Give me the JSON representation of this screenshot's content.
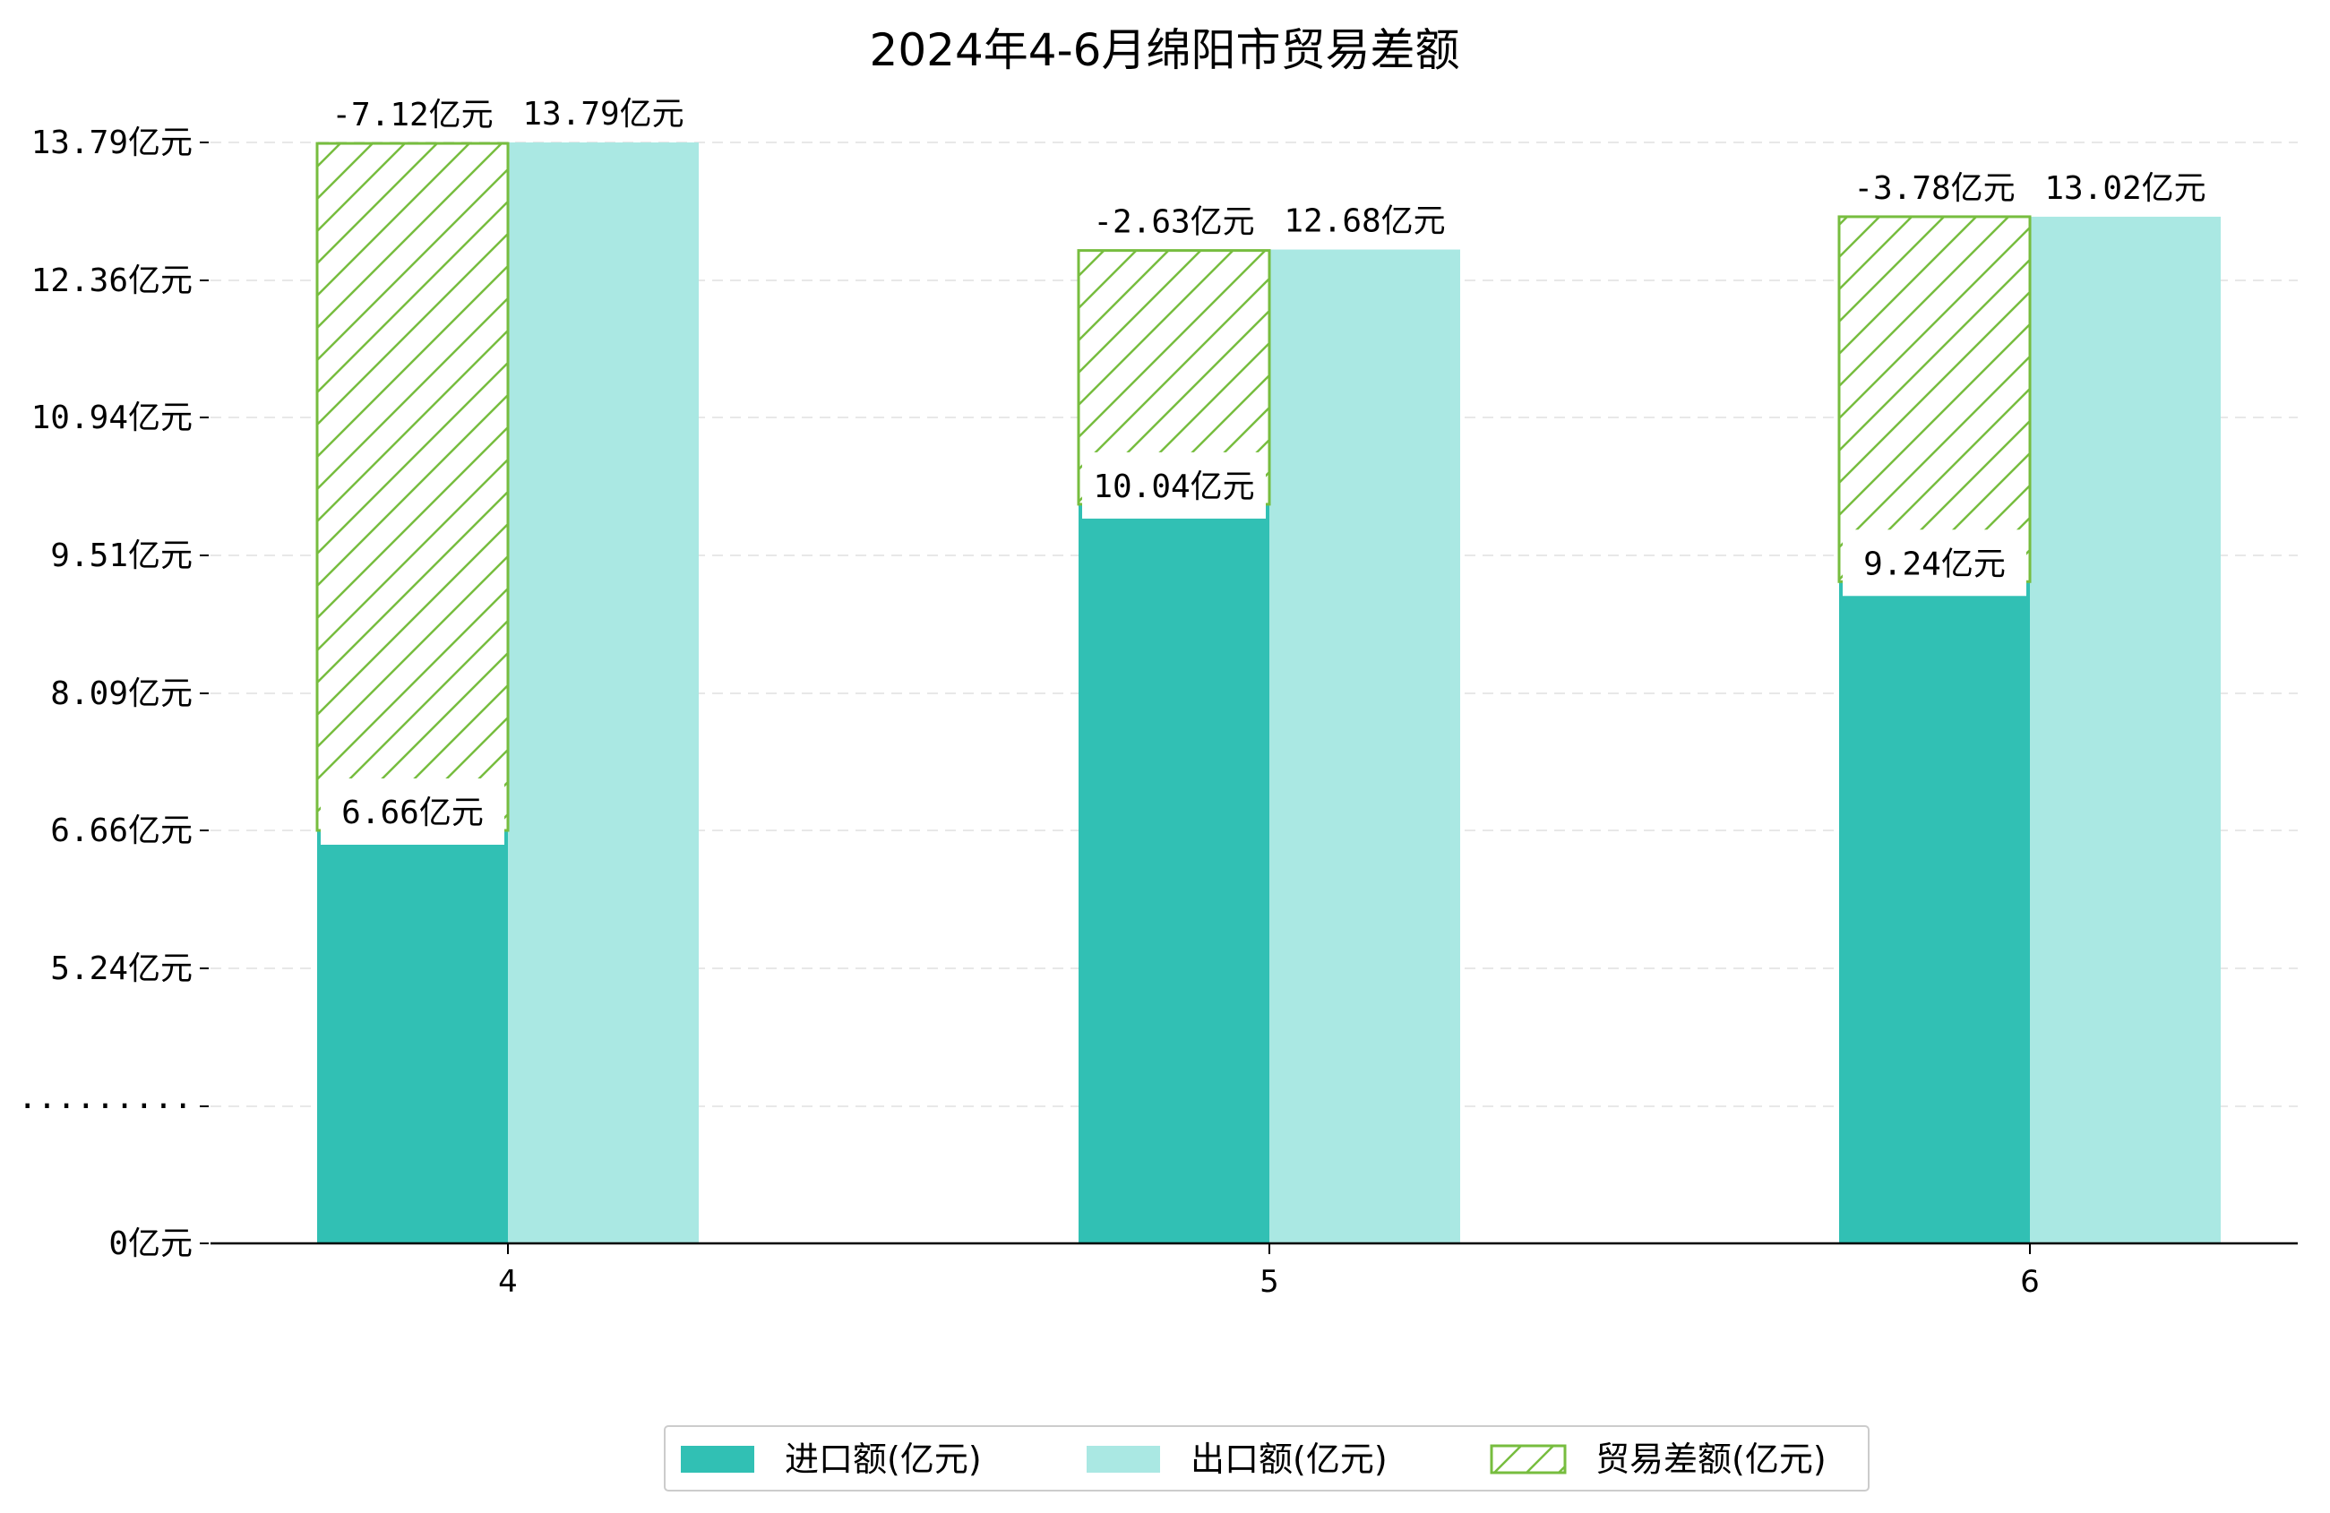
{
  "chart_data": {
    "type": "bar",
    "title": "2024年4-6月绵阳市贸易差额",
    "categories": [
      "4",
      "5",
      "6"
    ],
    "series": [
      {
        "name": "进口额(亿元)",
        "values": [
          6.66,
          10.04,
          9.24
        ],
        "color": "#31c0b4"
      },
      {
        "name": "出口额(亿元)",
        "values": [
          13.79,
          12.68,
          13.02
        ],
        "color": "#aae8e3"
      },
      {
        "name": "贸易差额(亿元)",
        "values": [
          -7.12,
          -2.63,
          -3.78
        ],
        "color": "#77bd3f",
        "pattern": "hatch"
      }
    ],
    "y_ticks": [
      "0亿元",
      "·········",
      "5.24亿元",
      "6.66亿元",
      "8.09亿元",
      "9.51亿元",
      "10.94亿元",
      "12.36亿元",
      "13.79亿元"
    ],
    "y_tick_values": [
      0,
      3.81,
      5.24,
      6.66,
      8.09,
      9.51,
      10.94,
      12.36,
      13.79
    ],
    "import_labels": [
      "6.66亿元",
      "10.04亿元",
      "9.24亿元"
    ],
    "export_labels": [
      "13.79亿元",
      "12.68亿元",
      "13.02亿元"
    ],
    "balance_labels": [
      "-7.12亿元",
      "-2.63亿元",
      "-3.78亿元"
    ],
    "ylim": [
      0,
      14.2
    ],
    "axis_break": true,
    "grid": "horizontal dashed",
    "legend_position": "bottom-center"
  }
}
